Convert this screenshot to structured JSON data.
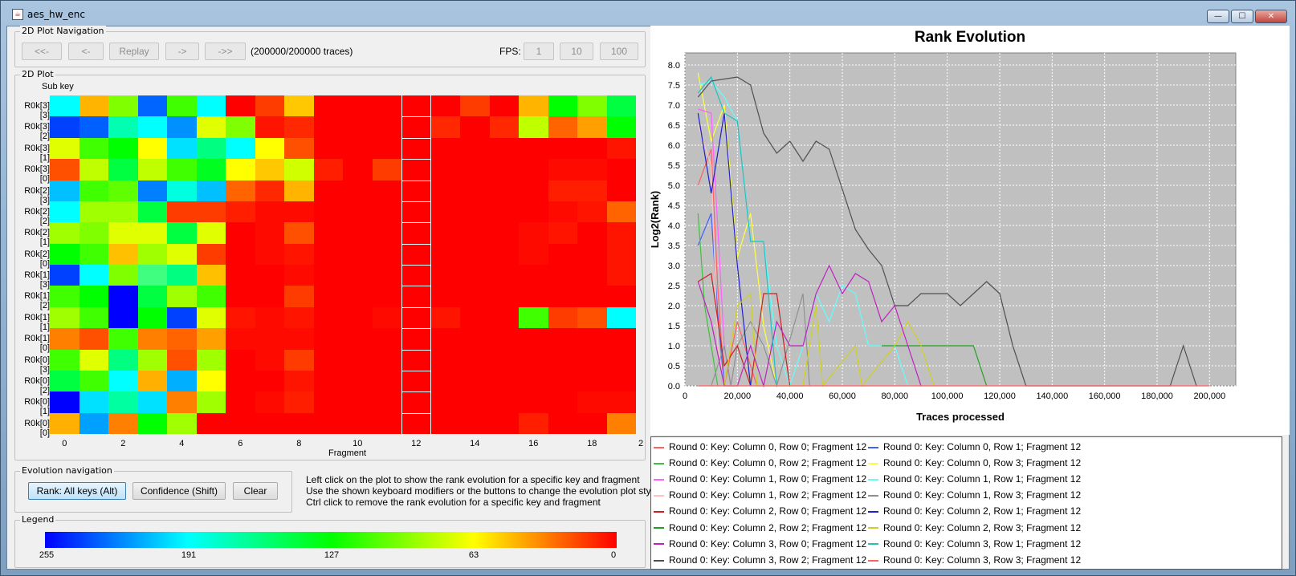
{
  "window": {
    "title": "aes_hw_enc",
    "minimize": "—",
    "maximize": "☐",
    "close": "✕"
  },
  "nav": {
    "group_title": "2D Plot Navigation",
    "buttons": [
      "<<-",
      "<-",
      "Replay",
      "->",
      "->>"
    ],
    "traces": "(200000/200000 traces)",
    "fps_label": "FPS:",
    "fps_buttons": [
      "1",
      "10",
      "100"
    ]
  },
  "plot2d": {
    "group_title": "2D Plot",
    "subkey_label": "Sub key",
    "xlabel": "Fragment",
    "row_labels": [
      "R0k[3][3]",
      "R0k[3][2]",
      "R0k[3][1]",
      "R0k[3][0]",
      "R0k[2][3]",
      "R0k[2][2]",
      "R0k[2][1]",
      "R0k[2][0]",
      "R0k[1][3]",
      "R0k[1][2]",
      "R0k[1][1]",
      "R0k[1][0]",
      "R0k[0][3]",
      "R0k[0][2]",
      "R0k[0][1]",
      "R0k[0][0]"
    ],
    "x_ticks": [
      "0",
      "2",
      "4",
      "6",
      "8",
      "10",
      "12",
      "14",
      "16",
      "18",
      "2"
    ],
    "selected_fragment": 12,
    "heat_colors": [
      [
        "#00ffff",
        "#ffb400",
        "#80ff00",
        "#0064ff",
        "#40ff00",
        "#00ffff",
        "#ff0000",
        "#ff3c00",
        "#ffc800",
        "#ff0000",
        "#ff0000",
        "#ff0000",
        "#ff0000",
        "#ff0000",
        "#ff3c00",
        "#ff0000",
        "#ffb400",
        "#00ff00",
        "#80ff00",
        "#00ff40"
      ],
      [
        "#0040ff",
        "#0060ff",
        "#00ffb0",
        "#00ffff",
        "#0090ff",
        "#e0ff00",
        "#80ff00",
        "#ff1400",
        "#ff2800",
        "#ff0000",
        "#ff0000",
        "#ff0000",
        "#ff0000",
        "#ff2800",
        "#ff0000",
        "#ff2800",
        "#c0ff00",
        "#ff6400",
        "#ffa000",
        "#00ff00"
      ],
      [
        "#e0ff00",
        "#40ff00",
        "#00ff00",
        "#ffff00",
        "#00e0ff",
        "#00ff80",
        "#00ffff",
        "#ffff00",
        "#ff5000",
        "#ff0000",
        "#ff0000",
        "#ff0000",
        "#ff0000",
        "#ff0000",
        "#ff0000",
        "#ff0000",
        "#ff0000",
        "#ff0000",
        "#ff0000",
        "#ff1400"
      ],
      [
        "#ff5000",
        "#c0ff00",
        "#00ff40",
        "#c0ff00",
        "#40ff00",
        "#00ff20",
        "#ffff00",
        "#ffc800",
        "#d0ff00",
        "#ff1e00",
        "#ff0000",
        "#ff3c00",
        "#ff0000",
        "#ff0000",
        "#ff0000",
        "#ff0000",
        "#ff0000",
        "#ff0a00",
        "#ff0a00",
        "#ff0000"
      ],
      [
        "#00c0ff",
        "#40ff00",
        "#60ff00",
        "#0080ff",
        "#00ffe0",
        "#00c0ff",
        "#ff6400",
        "#ff2800",
        "#ffb400",
        "#ff0000",
        "#ff0000",
        "#ff0000",
        "#ff0000",
        "#ff0000",
        "#ff0000",
        "#ff0000",
        "#ff0000",
        "#ff1e00",
        "#ff1e00",
        "#ff0000"
      ],
      [
        "#00ffff",
        "#a0ff00",
        "#a0ff00",
        "#00ff40",
        "#ff3c00",
        "#ff3c00",
        "#ff1e00",
        "#ff0a00",
        "#ff0a00",
        "#ff0000",
        "#ff0000",
        "#ff0000",
        "#ff0000",
        "#ff0000",
        "#ff0000",
        "#ff0000",
        "#ff0000",
        "#ff0a00",
        "#ff1400",
        "#ff6400"
      ],
      [
        "#a0ff00",
        "#80ff00",
        "#e0ff00",
        "#e0ff00",
        "#00ff40",
        "#e0ff00",
        "#ff0000",
        "#ff0a00",
        "#ff5000",
        "#ff0000",
        "#ff0000",
        "#ff0000",
        "#ff0000",
        "#ff0000",
        "#ff0000",
        "#ff0000",
        "#ff0a00",
        "#ff1400",
        "#ff0000",
        "#ff1400"
      ],
      [
        "#00ff00",
        "#40ff00",
        "#ffc000",
        "#a0ff00",
        "#e0ff00",
        "#ff3c00",
        "#ff0000",
        "#ff0a00",
        "#ff1400",
        "#ff0000",
        "#ff0000",
        "#ff0000",
        "#ff0000",
        "#ff0000",
        "#ff0000",
        "#ff0000",
        "#ff0a00",
        "#ff0000",
        "#ff0000",
        "#ff1400"
      ],
      [
        "#0040ff",
        "#00ffff",
        "#80ff00",
        "#40ff80",
        "#00ff80",
        "#ffc000",
        "#ff0000",
        "#ff0000",
        "#ff0a00",
        "#ff0000",
        "#ff0000",
        "#ff0000",
        "#ff0000",
        "#ff0000",
        "#ff0000",
        "#ff0000",
        "#ff0000",
        "#ff0000",
        "#ff0000",
        "#ff1400"
      ],
      [
        "#40ff00",
        "#00ff00",
        "#0000ff",
        "#00ff40",
        "#a0ff00",
        "#40ff00",
        "#ff0000",
        "#ff0000",
        "#ff3c00",
        "#ff0000",
        "#ff0000",
        "#ff0000",
        "#ff0000",
        "#ff0000",
        "#ff0000",
        "#ff0000",
        "#ff0000",
        "#ff0000",
        "#ff0000",
        "#ff0000"
      ],
      [
        "#a0ff00",
        "#40ff00",
        "#0000ff",
        "#00ff00",
        "#0040ff",
        "#e0ff00",
        "#ff1400",
        "#ff0a00",
        "#ff1400",
        "#ff0000",
        "#ff0000",
        "#ff0a00",
        "#ff0000",
        "#ff1400",
        "#ff0000",
        "#ff0000",
        "#40ff00",
        "#ff3c00",
        "#ff5000",
        "#00ffff"
      ],
      [
        "#ff8000",
        "#ff5000",
        "#40ff00",
        "#ff8000",
        "#ff6400",
        "#ffa000",
        "#ff0a00",
        "#ff0a00",
        "#ff0a00",
        "#ff0000",
        "#ff0000",
        "#ff0000",
        "#ff0000",
        "#ff0000",
        "#ff0000",
        "#ff0000",
        "#ff0000",
        "#ff0000",
        "#ff0000",
        "#ff0000"
      ],
      [
        "#40ff00",
        "#e0ff00",
        "#00ff80",
        "#a0ff00",
        "#ff5000",
        "#a0ff00",
        "#ff0000",
        "#ff0a00",
        "#ff3c00",
        "#ff0000",
        "#ff0000",
        "#ff0000",
        "#ff0000",
        "#ff0000",
        "#ff0000",
        "#ff0000",
        "#ff0000",
        "#ff0000",
        "#ff0000",
        "#ff0000"
      ],
      [
        "#00ff40",
        "#40ff00",
        "#00ffff",
        "#ffb000",
        "#00b0ff",
        "#ffff00",
        "#ff0000",
        "#ff0000",
        "#ff1400",
        "#ff0000",
        "#ff0000",
        "#ff0000",
        "#ff0000",
        "#ff0000",
        "#ff0000",
        "#ff0000",
        "#ff0000",
        "#ff0000",
        "#ff0000",
        "#ff0000"
      ],
      [
        "#0000ff",
        "#00e0ff",
        "#00ffa0",
        "#00e0ff",
        "#ff8000",
        "#a0ff00",
        "#ff0000",
        "#ff0a00",
        "#ff1e00",
        "#ff0000",
        "#ff0000",
        "#ff0000",
        "#ff0000",
        "#ff0000",
        "#ff0000",
        "#ff0000",
        "#ff0000",
        "#ff0000",
        "#ff0a00",
        "#ff0a00"
      ],
      [
        "#ffb000",
        "#00a0ff",
        "#ff8000",
        "#00ff00",
        "#a0ff00",
        "#ff0000",
        "#ff0000",
        "#ff0000",
        "#ff0000",
        "#ff0000",
        "#ff0000",
        "#ff0000",
        "#ff0000",
        "#ff0000",
        "#ff0000",
        "#ff0000",
        "#ff1e00",
        "#ff0000",
        "#ff0000",
        "#ff8000"
      ]
    ]
  },
  "evolution": {
    "group_title": "Evolution navigation",
    "rank_button": "Rank: All keys (Alt)",
    "confidence_button": "Confidence (Shift)",
    "clear_button": "Clear",
    "help_lines": [
      "Left click on the plot to show the rank evolution for a specific key and fragment",
      "Use the shown keyboard modifiers or the buttons to change the evolution plot style",
      "Ctrl click to remove the rank evolution for a specific key and fragment"
    ]
  },
  "legend_bar": {
    "group_title": "Legend",
    "ticks": [
      "255",
      "191",
      "127",
      "63",
      "0"
    ]
  },
  "chart_data": {
    "type": "line",
    "title": "Rank Evolution",
    "xlabel": "Traces processed",
    "ylabel": "Log2(Rank)",
    "xlim": [
      0,
      210000
    ],
    "ylim": [
      0,
      8.3
    ],
    "x_ticks": [
      "0",
      "20,000",
      "40,000",
      "60,000",
      "80,000",
      "100,000",
      "120,000",
      "140,000",
      "160,000",
      "180,000",
      "200,000"
    ],
    "y_ticks": [
      "0.0",
      "0.5",
      "1.0",
      "1.5",
      "2.0",
      "2.5",
      "3.0",
      "3.5",
      "4.0",
      "4.5",
      "5.0",
      "5.5",
      "6.0",
      "6.5",
      "7.0",
      "7.5",
      "8.0"
    ],
    "grid": true,
    "background": "#c0c0c0",
    "series": [
      {
        "name": "Round 0: Key: Column 0, Row 0; Fragment 12",
        "color": "#ff6060",
        "points": [
          [
            5000,
            5.0
          ],
          [
            10000,
            5.9
          ],
          [
            12500,
            2.5
          ],
          [
            15000,
            0
          ],
          [
            20000,
            1.6
          ],
          [
            25000,
            0.5
          ],
          [
            27500,
            0
          ]
        ]
      },
      {
        "name": "Round 0: Key: Column 0, Row 1; Fragment 12",
        "color": "#4060ff",
        "points": [
          [
            5000,
            3.5
          ],
          [
            10000,
            4.3
          ],
          [
            12500,
            1.8
          ],
          [
            15000,
            0
          ]
        ]
      },
      {
        "name": "Round 0: Key: Column 0, Row 2; Fragment 12",
        "color": "#40c040",
        "points": [
          [
            5000,
            4.3
          ],
          [
            7500,
            2.0
          ],
          [
            10000,
            1.0
          ],
          [
            12500,
            0
          ]
        ]
      },
      {
        "name": "Round 0: Key: Column 0, Row 3; Fragment 12",
        "color": "#ffff40",
        "points": [
          [
            5000,
            7.8
          ],
          [
            10000,
            6.1
          ],
          [
            15000,
            7.0
          ],
          [
            20000,
            3.2
          ],
          [
            25000,
            4.3
          ],
          [
            30000,
            1.5
          ],
          [
            35000,
            0
          ]
        ]
      },
      {
        "name": "Round 0: Key: Column 1, Row 0; Fragment 12",
        "color": "#ff60ff",
        "points": [
          [
            5000,
            6.9
          ],
          [
            10000,
            6.8
          ],
          [
            12500,
            4.0
          ],
          [
            15000,
            1.0
          ],
          [
            17500,
            0
          ]
        ]
      },
      {
        "name": "Round 0: Key: Column 1, Row 1; Fragment 12",
        "color": "#60ffff",
        "points": [
          [
            5000,
            7.5
          ],
          [
            10000,
            7.6
          ],
          [
            15000,
            7.2
          ],
          [
            20000,
            6.6
          ],
          [
            25000,
            3.6
          ],
          [
            30000,
            3.6
          ],
          [
            35000,
            1.0
          ],
          [
            40000,
            0
          ],
          [
            45000,
            1.0
          ],
          [
            50000,
            2.3
          ],
          [
            55000,
            1.6
          ],
          [
            60000,
            2.5
          ],
          [
            65000,
            2.3
          ],
          [
            70000,
            1.0
          ],
          [
            75000,
            1.0
          ],
          [
            80000,
            1.0
          ],
          [
            85000,
            0
          ]
        ]
      },
      {
        "name": "Round 0: Key: Column 1, Row 2; Fragment 12",
        "color": "#ffc0c0",
        "points": [
          [
            5000,
            6.5
          ],
          [
            10000,
            5.5
          ],
          [
            12500,
            1.0
          ],
          [
            15000,
            0
          ]
        ]
      },
      {
        "name": "Round 0: Key: Column 1, Row 3; Fragment 12",
        "color": "#909090",
        "points": [
          [
            10000,
            0
          ],
          [
            15000,
            1.0
          ],
          [
            17500,
            0
          ],
          [
            20000,
            1.0
          ],
          [
            25000,
            1.6
          ],
          [
            30000,
            1.0
          ],
          [
            35000,
            0
          ],
          [
            45000,
            2.3
          ],
          [
            47500,
            0
          ]
        ]
      },
      {
        "name": "Round 0: Key: Column 2, Row 0; Fragment 12",
        "color": "#cc2020",
        "points": [
          [
            5000,
            2.6
          ],
          [
            10000,
            2.8
          ],
          [
            15000,
            0.5
          ],
          [
            20000,
            1.0
          ],
          [
            25000,
            0
          ],
          [
            30000,
            2.3
          ],
          [
            35000,
            2.3
          ],
          [
            40000,
            0
          ]
        ]
      },
      {
        "name": "Round 0: Key: Column 2, Row 1; Fragment 12",
        "color": "#2020cc",
        "points": [
          [
            5000,
            6.8
          ],
          [
            10000,
            4.8
          ],
          [
            15000,
            6.8
          ],
          [
            20000,
            3.0
          ],
          [
            25000,
            0
          ]
        ]
      },
      {
        "name": "Round 0: Key: Column 2, Row 2; Fragment 12",
        "color": "#20a020",
        "points": [
          [
            75000,
            1.0
          ],
          [
            80000,
            1.0
          ],
          [
            110000,
            1.0
          ],
          [
            115000,
            0
          ]
        ]
      },
      {
        "name": "Round 0: Key: Column 2, Row 3; Fragment 12",
        "color": "#d0d020",
        "points": [
          [
            15000,
            0
          ],
          [
            20000,
            2.0
          ],
          [
            25000,
            2.3
          ],
          [
            27500,
            0
          ],
          [
            45000,
            0
          ],
          [
            50000,
            2.0
          ],
          [
            52500,
            0
          ],
          [
            65000,
            1.0
          ],
          [
            67500,
            0
          ],
          [
            80000,
            1.0
          ],
          [
            85000,
            1.6
          ],
          [
            90000,
            1.0
          ],
          [
            95000,
            0
          ]
        ]
      },
      {
        "name": "Round 0: Key: Column 3, Row 0; Fragment 12",
        "color": "#c020c0",
        "points": [
          [
            5000,
            2.6
          ],
          [
            10000,
            1.6
          ],
          [
            15000,
            0
          ],
          [
            20000,
            0
          ],
          [
            25000,
            1.0
          ],
          [
            30000,
            0
          ],
          [
            35000,
            1.6
          ],
          [
            40000,
            1.0
          ],
          [
            45000,
            1.0
          ],
          [
            50000,
            2.3
          ],
          [
            55000,
            3.0
          ],
          [
            60000,
            2.3
          ],
          [
            65000,
            2.8
          ],
          [
            70000,
            2.6
          ],
          [
            75000,
            1.6
          ],
          [
            80000,
            2.0
          ],
          [
            85000,
            1.0
          ],
          [
            90000,
            0
          ]
        ]
      },
      {
        "name": "Round 0: Key: Column 3, Row 1; Fragment 12",
        "color": "#20c0c0",
        "points": [
          [
            5000,
            7.3
          ],
          [
            10000,
            7.7
          ],
          [
            15000,
            6.8
          ],
          [
            20000,
            6.6
          ],
          [
            25000,
            3.6
          ],
          [
            30000,
            3.6
          ],
          [
            35000,
            0
          ]
        ]
      },
      {
        "name": "Round 0: Key: Column 3, Row 2; Fragment 12",
        "color": "#505050",
        "points": [
          [
            5000,
            7.2
          ],
          [
            10000,
            7.6
          ],
          [
            20000,
            7.7
          ],
          [
            25000,
            7.5
          ],
          [
            30000,
            6.3
          ],
          [
            35000,
            5.8
          ],
          [
            40000,
            6.1
          ],
          [
            45000,
            5.6
          ],
          [
            50000,
            6.1
          ],
          [
            55000,
            5.9
          ],
          [
            60000,
            4.9
          ],
          [
            65000,
            3.9
          ],
          [
            70000,
            3.4
          ],
          [
            75000,
            3.0
          ],
          [
            80000,
            2.0
          ],
          [
            85000,
            2.0
          ],
          [
            90000,
            2.3
          ],
          [
            95000,
            2.3
          ],
          [
            100000,
            2.3
          ],
          [
            105000,
            2.0
          ],
          [
            110000,
            2.3
          ],
          [
            115000,
            2.6
          ],
          [
            120000,
            2.3
          ],
          [
            125000,
            1.0
          ],
          [
            130000,
            0
          ],
          [
            185000,
            0
          ],
          [
            190000,
            1.0
          ],
          [
            195000,
            0
          ]
        ]
      },
      {
        "name": "Round 0: Key: Column 3, Row 3; Fragment 12",
        "color": "#ff6060",
        "points": [
          [
            5000,
            0
          ],
          [
            200000,
            0
          ]
        ]
      }
    ]
  }
}
